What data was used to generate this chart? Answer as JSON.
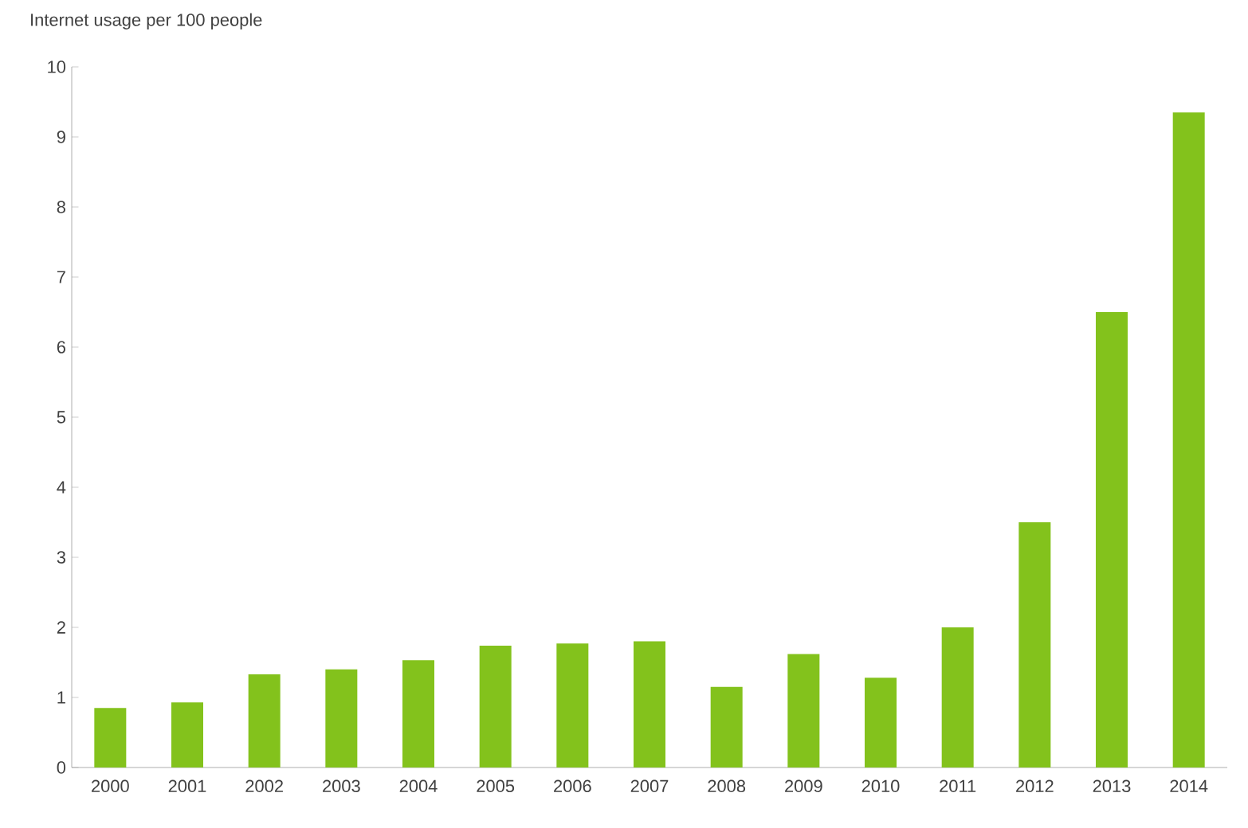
{
  "chart_data": {
    "type": "bar",
    "title": "Internet usage per 100 people",
    "categories": [
      "2000",
      "2001",
      "2002",
      "2003",
      "2004",
      "2005",
      "2006",
      "2007",
      "2008",
      "2009",
      "2010",
      "2011",
      "2012",
      "2013",
      "2014"
    ],
    "values": [
      0.85,
      0.93,
      1.33,
      1.4,
      1.53,
      1.74,
      1.77,
      1.8,
      1.15,
      1.62,
      1.28,
      2.0,
      3.5,
      6.5,
      9.35
    ],
    "color": "#83c21c",
    "ylim": [
      0,
      10
    ],
    "yticks": [
      0,
      1,
      2,
      3,
      4,
      5,
      6,
      7,
      8,
      9,
      10
    ],
    "grid": false
  }
}
